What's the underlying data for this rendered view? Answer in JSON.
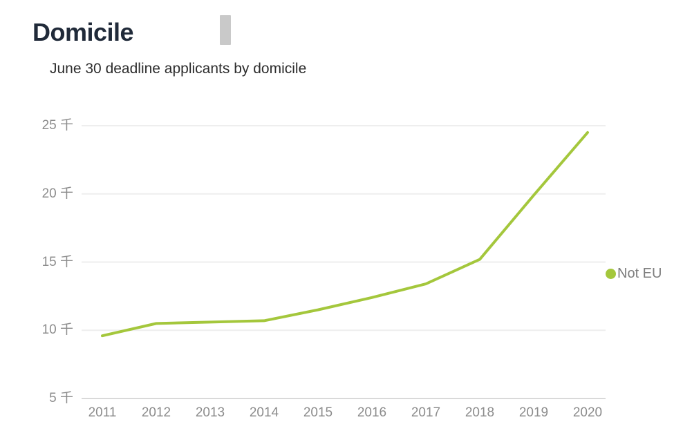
{
  "page": {
    "title": "Domicile",
    "subtitle": "June 30 deadline applicants by domicile"
  },
  "legend": {
    "position": "right",
    "items": [
      {
        "label": "Not EU",
        "color": "#a4c73c"
      }
    ]
  },
  "colors": {
    "series_line": "#a4c73c",
    "grid_line": "#eeeeee",
    "axis_line": "#d9d9d9",
    "tick_text": "#8c8c8c",
    "title_text": "#202a39",
    "subtitle_text": "#2d2d2d",
    "marker_bar": "#c9c9c9",
    "background": "#ffffff"
  },
  "chart_data": {
    "type": "line",
    "title": "Domicile",
    "subtitle": "June 30 deadline applicants by domicile",
    "categories": [
      "2011",
      "2012",
      "2013",
      "2014",
      "2015",
      "2016",
      "2017",
      "2018",
      "2019",
      "2020"
    ],
    "series": [
      {
        "name": "Not EU",
        "color": "#a4c73c",
        "values": [
          9.6,
          10.5,
          10.6,
          10.7,
          11.5,
          12.4,
          13.4,
          15.2,
          19.9,
          24.5
        ]
      }
    ],
    "unit": "千",
    "y_ticks": [
      5,
      10,
      15,
      20,
      25
    ],
    "ylim": [
      5,
      25
    ],
    "xlabel": "",
    "ylabel": "",
    "grid": true,
    "legend_position": "right"
  }
}
